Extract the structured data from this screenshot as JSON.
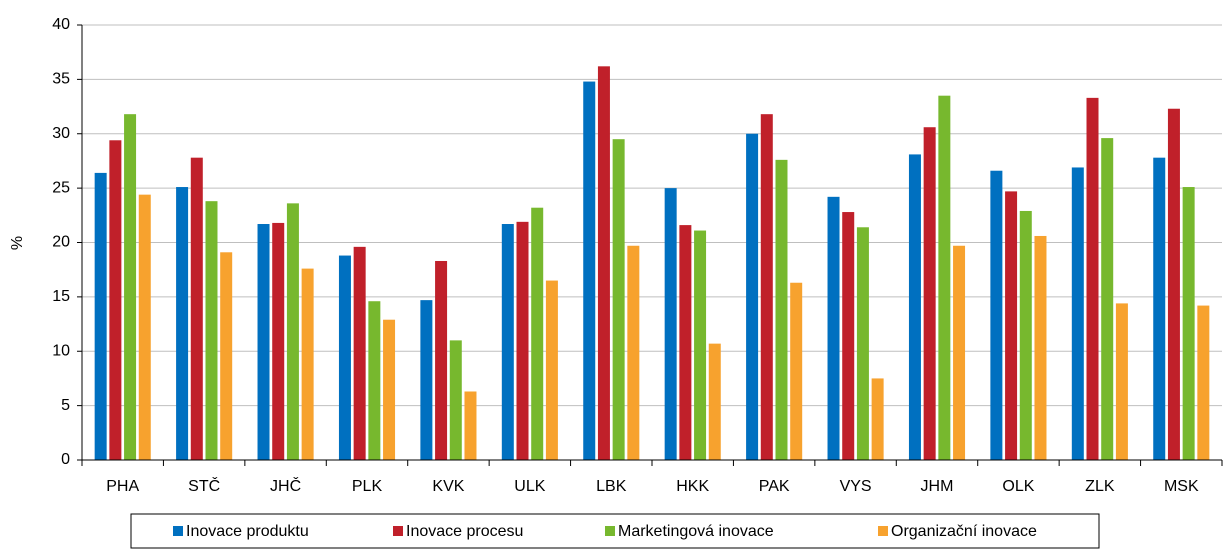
{
  "chart_data": {
    "type": "bar",
    "y_label": "%",
    "categories": [
      "PHA",
      "STČ",
      "JHČ",
      "PLK",
      "KVK",
      "ULK",
      "LBK",
      "HKK",
      "PAK",
      "VYS",
      "JHM",
      "OLK",
      "ZLK",
      "MSK"
    ],
    "series": [
      {
        "name": "Inovace produktu",
        "color": "#0070c0",
        "values": [
          26.4,
          25.1,
          21.7,
          18.8,
          14.7,
          21.7,
          34.8,
          25.0,
          30.0,
          24.2,
          28.1,
          26.6,
          26.9,
          27.8
        ]
      },
      {
        "name": "Inovace procesu",
        "color": "#c0202a",
        "values": [
          29.4,
          27.8,
          21.8,
          19.6,
          18.3,
          21.9,
          36.2,
          21.6,
          31.8,
          22.8,
          30.6,
          24.7,
          33.3,
          32.3
        ]
      },
      {
        "name": "Marketingová inovace",
        "color": "#77b82e",
        "values": [
          31.8,
          23.8,
          23.6,
          14.6,
          11.0,
          23.2,
          29.5,
          21.1,
          27.6,
          21.4,
          33.5,
          22.9,
          29.6,
          25.1
        ]
      },
      {
        "name": "Organizační inovace",
        "color": "#f7a22e",
        "values": [
          24.4,
          19.1,
          17.6,
          12.9,
          6.3,
          16.5,
          19.7,
          10.7,
          16.3,
          7.5,
          19.7,
          20.6,
          14.4,
          14.2
        ]
      }
    ],
    "ylim": [
      0,
      40
    ],
    "yticks": [
      0,
      5,
      10,
      15,
      20,
      25,
      30,
      35,
      40
    ],
    "grid": true
  }
}
